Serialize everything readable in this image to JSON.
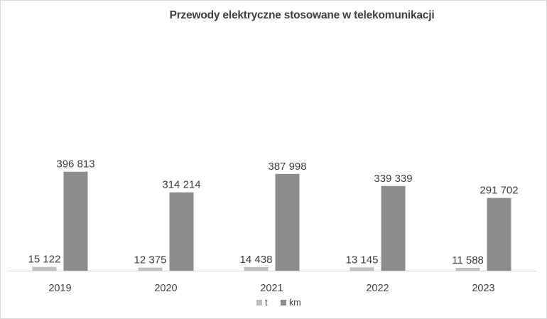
{
  "chart_data": {
    "type": "bar",
    "title": "Przewody elektryczne stosowane w telekomunikacji",
    "categories": [
      "2019",
      "2020",
      "2021",
      "2022",
      "2023"
    ],
    "series": [
      {
        "name": "t",
        "color": "#bfbfbf",
        "values": [
          15122,
          12375,
          14438,
          13145,
          11588
        ],
        "labels": [
          "15 122",
          "12 375",
          "14 438",
          "13 145",
          "11 588"
        ]
      },
      {
        "name": "km",
        "color": "#8c8c8c",
        "values": [
          396813,
          314214,
          387998,
          339339,
          291702
        ],
        "labels": [
          "396 813",
          "314 214",
          "387 998",
          "339 339",
          "291 702"
        ]
      }
    ],
    "ylim": [
      0,
      1000000
    ],
    "grid": false,
    "legend": "bottom"
  }
}
